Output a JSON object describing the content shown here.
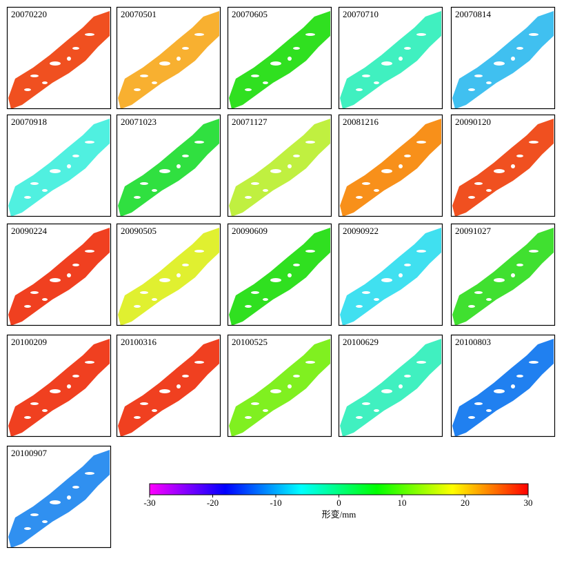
{
  "panels": [
    {
      "label": "20070220",
      "color": "#f05020"
    },
    {
      "label": "20070501",
      "color": "#f8b030"
    },
    {
      "label": "20070605",
      "color": "#30e020"
    },
    {
      "label": "20070710",
      "color": "#40f0c0"
    },
    {
      "label": "20070814",
      "color": "#40c0f0"
    },
    {
      "label": "20070918",
      "color": "#50f0e0"
    },
    {
      "label": "20071023",
      "color": "#30e040"
    },
    {
      "label": "20071127",
      "color": "#c0f040"
    },
    {
      "label": "20081216",
      "color": "#f8901a"
    },
    {
      "label": "20090120",
      "color": "#f05020"
    },
    {
      "label": "20090224",
      "color": "#f04020"
    },
    {
      "label": "20090505",
      "color": "#e0f030"
    },
    {
      "label": "20090609",
      "color": "#30e020"
    },
    {
      "label": "20090922",
      "color": "#40e0f0"
    },
    {
      "label": "20091027",
      "color": "#40e030"
    },
    {
      "label": "20100209",
      "color": "#f04020"
    },
    {
      "label": "20100316",
      "color": "#f04020"
    },
    {
      "label": "20100525",
      "color": "#80f020"
    },
    {
      "label": "20100629",
      "color": "#40f0c0"
    },
    {
      "label": "20100803",
      "color": "#2080f0"
    },
    {
      "label": "20100907",
      "color": "#3090f0"
    }
  ],
  "colorbar": {
    "lim": [
      -30,
      30
    ],
    "ticks": [
      -30,
      -20,
      -10,
      0,
      10,
      20,
      30
    ],
    "label": "形变/mm",
    "colors": [
      "#ff00ff",
      "#0000ff",
      "#00ffff",
      "#00ff00",
      "#ffff00",
      "#ff0000"
    ]
  }
}
